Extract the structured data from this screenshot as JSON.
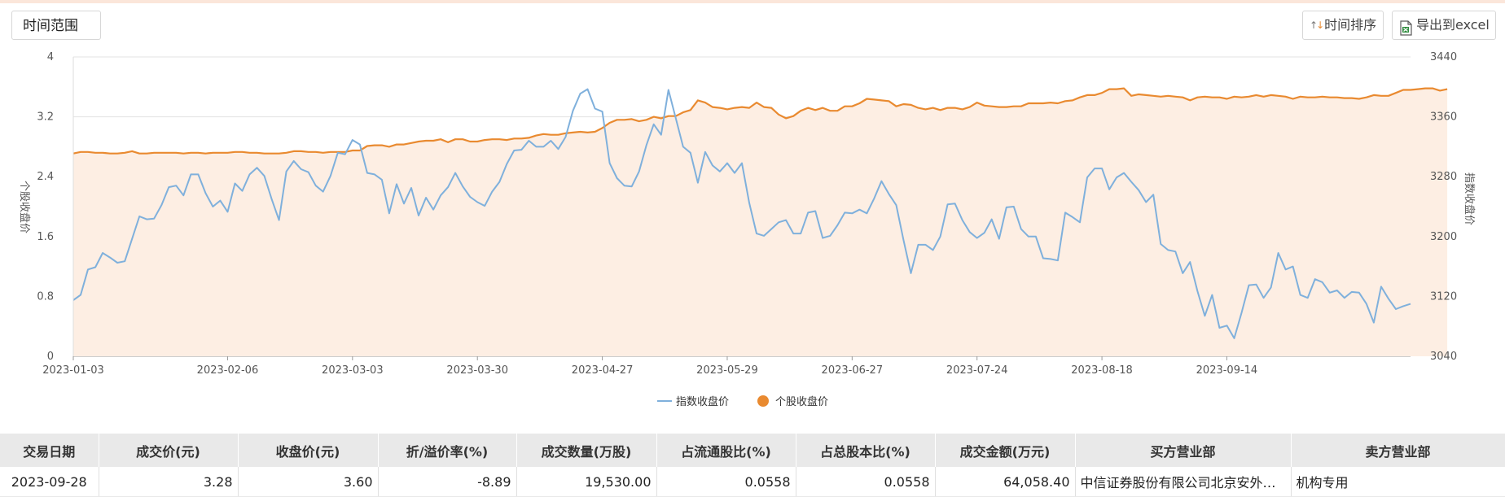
{
  "toolbar": {
    "time_range_label": "时间范围",
    "sort_label": "时间排序",
    "export_label": "导出到excel"
  },
  "colors": {
    "index_line": "#7fb0dc",
    "stock_line": "#e98a30",
    "area_fill": "#fdeee3"
  },
  "chart_data": {
    "type": "line",
    "x_ticks": [
      "2023-01-03",
      "2023-02-06",
      "2023-03-03",
      "2023-03-30",
      "2023-04-27",
      "2023-05-29",
      "2023-06-27",
      "2023-07-24",
      "2023-08-18",
      "2023-09-14"
    ],
    "y_left": {
      "label": "个股收盘价",
      "ticks": [
        "0",
        "0.8",
        "1.6",
        "2.4",
        "3.2",
        "4"
      ],
      "range": [
        0,
        4
      ]
    },
    "y_right": {
      "label": "指数收盘价",
      "ticks": [
        "3040",
        "3120",
        "3200",
        "3280",
        "3360",
        "3440"
      ],
      "range": [
        3040,
        3440
      ]
    },
    "legend_position": "bottom-center",
    "series": [
      {
        "name": "指数收盘价",
        "axis": "left",
        "color": "#7fb0dc",
        "values": [
          0.75,
          0.82,
          1.16,
          1.19,
          1.38,
          1.32,
          1.25,
          1.27,
          1.57,
          1.87,
          1.83,
          1.84,
          2.02,
          2.26,
          2.28,
          2.15,
          2.43,
          2.43,
          2.18,
          2.0,
          2.08,
          1.93,
          2.31,
          2.21,
          2.43,
          2.52,
          2.41,
          2.1,
          1.82,
          2.47,
          2.61,
          2.5,
          2.46,
          2.28,
          2.2,
          2.41,
          2.72,
          2.7,
          2.89,
          2.83,
          2.45,
          2.43,
          2.36,
          1.91,
          2.3,
          2.04,
          2.25,
          1.88,
          2.12,
          1.96,
          2.15,
          2.26,
          2.45,
          2.27,
          2.13,
          2.06,
          2.01,
          2.2,
          2.33,
          2.57,
          2.75,
          2.76,
          2.88,
          2.8,
          2.8,
          2.88,
          2.77,
          2.93,
          3.28,
          3.51,
          3.57,
          3.31,
          3.27,
          2.58,
          2.38,
          2.28,
          2.27,
          2.47,
          2.82,
          3.1,
          2.96,
          3.56,
          3.18,
          2.8,
          2.72,
          2.32,
          2.73,
          2.55,
          2.47,
          2.58,
          2.45,
          2.58,
          2.05,
          1.64,
          1.61,
          1.7,
          1.79,
          1.82,
          1.64,
          1.64,
          1.92,
          1.94,
          1.58,
          1.61,
          1.75,
          1.92,
          1.91,
          1.96,
          1.91,
          2.11,
          2.34,
          2.17,
          2.02,
          1.55,
          1.11,
          1.49,
          1.49,
          1.42,
          1.6,
          2.03,
          2.04,
          1.82,
          1.66,
          1.58,
          1.65,
          1.83,
          1.57,
          1.99,
          2.0,
          1.7,
          1.6,
          1.6,
          1.31,
          1.3,
          1.28,
          1.92,
          1.86,
          1.79,
          2.39,
          2.51,
          2.51,
          2.23,
          2.39,
          2.45,
          2.33,
          2.22,
          2.06,
          2.16,
          1.5,
          1.42,
          1.4,
          1.11,
          1.26,
          0.87,
          0.54,
          0.82,
          0.38,
          0.41,
          0.24,
          0.58,
          0.95,
          0.96,
          0.78,
          0.92,
          1.38,
          1.16,
          1.2,
          0.82,
          0.78,
          1.03,
          0.99,
          0.85,
          0.88,
          0.78,
          0.86,
          0.85,
          0.7,
          0.45,
          0.93,
          0.77,
          0.63,
          0.67,
          0.7
        ]
      },
      {
        "name": "个股收盘价",
        "axis": "right",
        "color": "#e98a30",
        "values": [
          3311,
          3313,
          3313,
          3312,
          3312,
          3311,
          3311,
          3312,
          3314,
          3311,
          3311,
          3312,
          3312,
          3312,
          3312,
          3311,
          3312,
          3312,
          3311,
          3312,
          3312,
          3312,
          3313,
          3313,
          3312,
          3312,
          3311,
          3311,
          3311,
          3312,
          3314,
          3314,
          3313,
          3313,
          3312,
          3313,
          3313,
          3313,
          3315,
          3315,
          3321,
          3322,
          3322,
          3320,
          3323,
          3323,
          3325,
          3327,
          3328,
          3328,
          3330,
          3326,
          3330,
          3330,
          3327,
          3327,
          3329,
          3330,
          3330,
          3329,
          3331,
          3331,
          3332,
          3335,
          3337,
          3336,
          3336,
          3338,
          3339,
          3340,
          3339,
          3340,
          3345,
          3352,
          3356,
          3356,
          3357,
          3354,
          3356,
          3360,
          3358,
          3361,
          3361,
          3366,
          3369,
          3382,
          3379,
          3373,
          3372,
          3370,
          3372,
          3373,
          3372,
          3379,
          3373,
          3372,
          3363,
          3358,
          3361,
          3368,
          3372,
          3369,
          3372,
          3368,
          3368,
          3374,
          3374,
          3378,
          3384,
          3383,
          3382,
          3381,
          3374,
          3377,
          3376,
          3372,
          3370,
          3372,
          3369,
          3372,
          3372,
          3370,
          3373,
          3379,
          3375,
          3374,
          3373,
          3373,
          3374,
          3374,
          3378,
          3378,
          3378,
          3379,
          3378,
          3381,
          3382,
          3386,
          3389,
          3389,
          3392,
          3397,
          3397,
          3398,
          3388,
          3390,
          3389,
          3388,
          3387,
          3388,
          3387,
          3386,
          3382,
          3386,
          3387,
          3386,
          3386,
          3384,
          3387,
          3386,
          3387,
          3389,
          3387,
          3389,
          3388,
          3387,
          3384,
          3387,
          3386,
          3386,
          3387,
          3386,
          3386,
          3385,
          3385,
          3384,
          3386,
          3389,
          3388,
          3388,
          3392,
          3396,
          3396,
          3397,
          3398,
          3398,
          3395,
          3397
        ]
      }
    ]
  },
  "table": {
    "headers": [
      "交易日期",
      "成交价(元)",
      "收盘价(元)",
      "折/溢价率(%)",
      "成交数量(万股)",
      "占流通股比(%)",
      "占总股本比(%)",
      "成交金额(万元)",
      "买方营业部",
      "卖方营业部"
    ],
    "rows": [
      [
        "2023-09-28",
        "3.28",
        "3.60",
        "-8.89",
        "19,530.00",
        "0.0558",
        "0.0558",
        "64,058.40",
        "中信证券股份有限公司北京安外大街证券营业部",
        "机构专用"
      ]
    ]
  }
}
